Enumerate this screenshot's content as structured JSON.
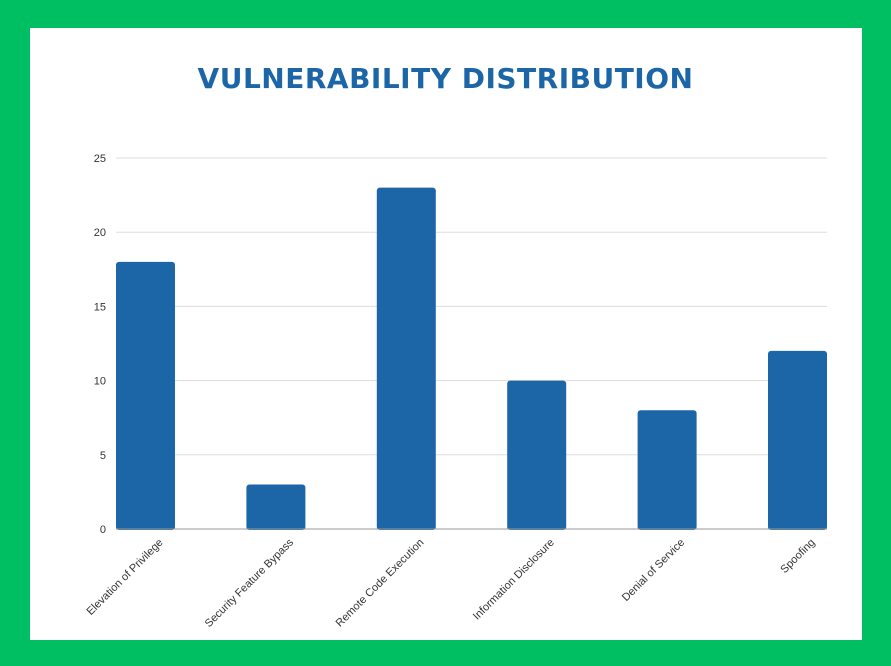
{
  "colors": {
    "background": "#00bf63",
    "card": "#ffffff",
    "title": "#1c66a8",
    "bar": "#1c66a8",
    "grid": "#dddddd",
    "axis": "#999999"
  },
  "chart_data": {
    "type": "bar",
    "title": "VULNERABILITY DISTRIBUTION",
    "xlabel": "",
    "ylabel": "",
    "categories": [
      "Elevation of Privilege",
      "Security Feature Bypass",
      "Remote Code Execution",
      "Information Disclosure",
      "Denial of Service",
      "Spoofing"
    ],
    "values": [
      18,
      3,
      23,
      10,
      8,
      12
    ],
    "ylim": [
      0,
      25
    ],
    "yticks": [
      0,
      5,
      10,
      15,
      20,
      25
    ],
    "grid": true,
    "legend": "none"
  }
}
